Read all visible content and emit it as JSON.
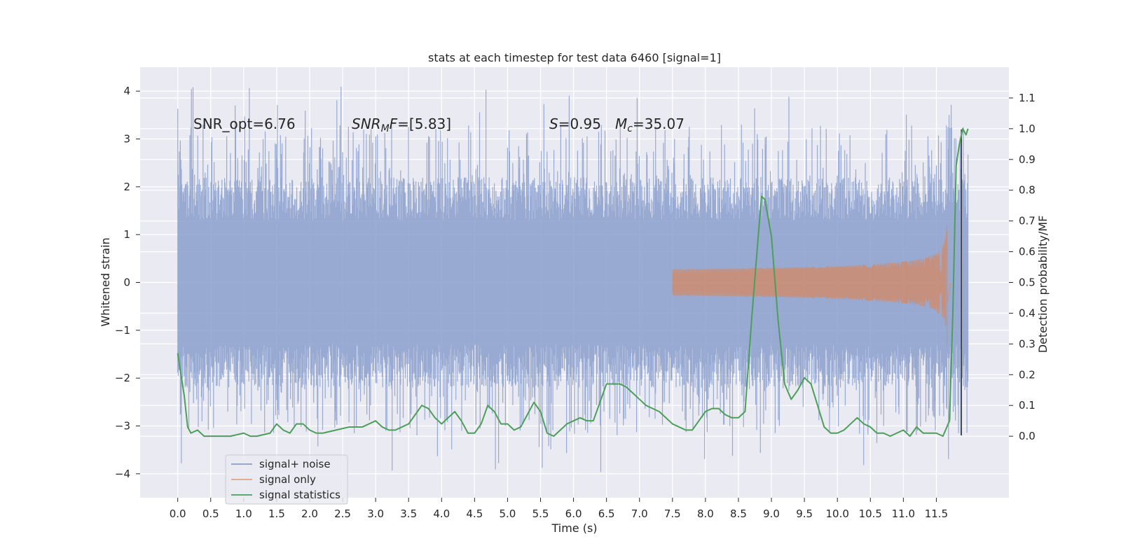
{
  "chart_data": {
    "type": "line",
    "title": "stats at each timestep for test data 6460 [signal=1]",
    "xlabel": "Time (s)",
    "ylabel": "Whitened strain",
    "ylabel_right": "Detection probability/MF",
    "xlim": [
      -0.57,
      12.6
    ],
    "ylim": [
      -4.5,
      4.5
    ],
    "ylim_right": [
      -0.2,
      1.2
    ],
    "x_ticks": [
      "0.0",
      "0.5",
      "1.0",
      "1.5",
      "2.0",
      "2.5",
      "3.0",
      "3.5",
      "4.0",
      "4.5",
      "5.0",
      "5.5",
      "6.0",
      "6.5",
      "7.0",
      "7.5",
      "8.0",
      "8.5",
      "9.0",
      "9.5",
      "10.0",
      "10.5",
      "11.0",
      "11.5"
    ],
    "y_ticks": [
      4,
      3,
      2,
      1,
      0,
      -1,
      -2,
      -3,
      -4
    ],
    "y_tick_labels": [
      "4",
      "3",
      "2",
      "1",
      "0",
      "−1",
      "−2",
      "−3",
      "−4"
    ],
    "y_right_ticks": [
      1.1,
      1.0,
      0.9,
      0.8,
      0.7,
      0.6,
      0.5,
      0.4,
      0.3,
      0.2,
      0.1,
      0.0
    ],
    "y_right_tick_labels": [
      "1.1",
      "1.0",
      "0.9",
      "0.8",
      "0.7",
      "0.6",
      "0.5",
      "0.4",
      "0.3",
      "0.2",
      "0.1",
      "0.0"
    ],
    "grid": true,
    "legend_position": "lower-left",
    "annotations": {
      "snr_opt": "SNR_opt=6.76",
      "snr_mf_label": "SNR",
      "snr_mf_sub": "M",
      "snr_mf_label2": "F",
      "snr_mf_value": "=[5.83]",
      "s_label": "S",
      "s_value": "=0.95",
      "mc_label": "M",
      "mc_sub": "c",
      "mc_value": "=35.07"
    },
    "series": [
      {
        "name": "signal+ noise",
        "color": "#8a9fcc",
        "kind": "noise",
        "x_range": [
          0.0,
          11.98
        ],
        "envelope": [
          -2.0,
          2.0
        ],
        "extremes": [
          -4.0,
          4.1
        ]
      },
      {
        "name": "signal only",
        "color": "#dd8452",
        "kind": "chirp",
        "x_start": 7.5,
        "x_merger": 11.67,
        "peak_amplitude": 1.75
      },
      {
        "name": "signal statistics",
        "color": "#4c9f5a",
        "kind": "line",
        "axis": "right",
        "x": [
          0.0,
          0.05,
          0.1,
          0.15,
          0.2,
          0.3,
          0.4,
          0.5,
          0.6,
          0.8,
          1.0,
          1.1,
          1.2,
          1.4,
          1.5,
          1.6,
          1.7,
          1.8,
          1.9,
          2.0,
          2.1,
          2.2,
          2.4,
          2.6,
          2.8,
          3.0,
          3.1,
          3.2,
          3.3,
          3.4,
          3.5,
          3.6,
          3.7,
          3.8,
          3.9,
          4.0,
          4.1,
          4.2,
          4.3,
          4.4,
          4.5,
          4.6,
          4.7,
          4.8,
          4.9,
          5.0,
          5.1,
          5.2,
          5.3,
          5.4,
          5.5,
          5.6,
          5.7,
          5.8,
          5.9,
          6.0,
          6.1,
          6.2,
          6.3,
          6.4,
          6.5,
          6.6,
          6.7,
          6.8,
          6.9,
          7.0,
          7.1,
          7.2,
          7.3,
          7.4,
          7.5,
          7.6,
          7.7,
          7.8,
          7.9,
          8.0,
          8.1,
          8.2,
          8.3,
          8.4,
          8.5,
          8.6,
          8.7,
          8.8,
          8.85,
          8.9,
          9.0,
          9.1,
          9.2,
          9.3,
          9.4,
          9.5,
          9.6,
          9.7,
          9.8,
          9.9,
          10.0,
          10.1,
          10.2,
          10.3,
          10.4,
          10.5,
          10.6,
          10.7,
          10.8,
          10.9,
          11.0,
          11.1,
          11.2,
          11.3,
          11.4,
          11.5,
          11.6,
          11.7,
          11.75,
          11.8,
          11.85,
          11.9,
          11.95,
          11.98
        ],
        "y": [
          0.27,
          0.2,
          0.13,
          0.03,
          0.01,
          0.02,
          0.0,
          0.0,
          0.0,
          0.0,
          0.01,
          0.0,
          0.0,
          0.01,
          0.04,
          0.02,
          0.01,
          0.04,
          0.04,
          0.02,
          0.01,
          0.01,
          0.02,
          0.03,
          0.03,
          0.05,
          0.03,
          0.02,
          0.02,
          0.03,
          0.04,
          0.07,
          0.1,
          0.09,
          0.06,
          0.04,
          0.06,
          0.08,
          0.05,
          0.01,
          0.01,
          0.04,
          0.1,
          0.08,
          0.04,
          0.04,
          0.02,
          0.03,
          0.07,
          0.11,
          0.08,
          0.01,
          0.0,
          0.02,
          0.04,
          0.05,
          0.06,
          0.05,
          0.05,
          0.11,
          0.17,
          0.17,
          0.17,
          0.16,
          0.14,
          0.12,
          0.1,
          0.09,
          0.08,
          0.06,
          0.04,
          0.03,
          0.02,
          0.02,
          0.05,
          0.08,
          0.09,
          0.09,
          0.07,
          0.06,
          0.06,
          0.08,
          0.38,
          0.65,
          0.78,
          0.77,
          0.65,
          0.38,
          0.17,
          0.12,
          0.15,
          0.19,
          0.17,
          0.1,
          0.03,
          0.01,
          0.01,
          0.02,
          0.04,
          0.06,
          0.04,
          0.03,
          0.01,
          0.01,
          0.0,
          0.01,
          0.02,
          0.0,
          0.03,
          0.01,
          0.01,
          0.01,
          0.0,
          0.05,
          0.4,
          0.88,
          0.95,
          1.0,
          0.98,
          1.0
        ]
      }
    ]
  }
}
